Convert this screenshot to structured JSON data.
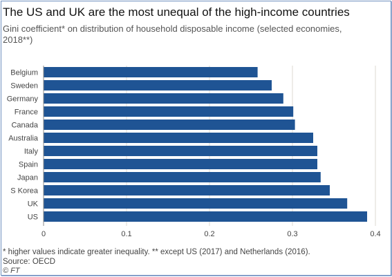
{
  "header": {
    "title": "The US and UK are the most unequal of the high-income countries",
    "subtitle": "Gini coefficient* on distribution of household disposable income (selected economies, 2018**)"
  },
  "footer": {
    "note": "* higher values indicate greater inequality. ** except US (2017) and Netherlands (2016).",
    "source": "Source: OECD",
    "credit": "© FT"
  },
  "colors": {
    "bar": "#1f5494",
    "grid": "#dcd8d2",
    "axis": "#8a8a8a"
  },
  "chart_data": {
    "type": "bar",
    "orientation": "horizontal",
    "categories": [
      "Belgium",
      "Sweden",
      "Germany",
      "France",
      "Canada",
      "Australia",
      "Italy",
      "Spain",
      "Japan",
      "S Korea",
      "UK",
      "US"
    ],
    "values": [
      0.258,
      0.275,
      0.289,
      0.301,
      0.303,
      0.325,
      0.33,
      0.33,
      0.334,
      0.345,
      0.366,
      0.39
    ],
    "xlim": [
      0,
      0.4
    ],
    "xticks": [
      0,
      0.1,
      0.2,
      0.3,
      0.4
    ],
    "grid": true
  }
}
